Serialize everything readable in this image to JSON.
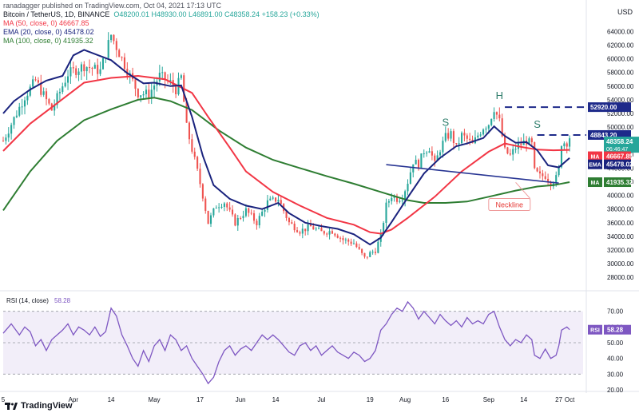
{
  "header": {
    "publisher_line": "ranadagger published on TradingView.com, Oct 04, 2021 17:13 UTC",
    "symbol": "Bitcoin / TetherUS, 1D, BINANCE",
    "ohlc": "O48200.01  H48930.00  L46891.00  C48358.24  +158.23 (+0.33%)",
    "ma50": "MA (50, close, 0)   46667.85",
    "ema20": "EMA (20, close, 0)   45478.02",
    "ma100": "MA (100, close, 0)   41935.32",
    "currency": "USD"
  },
  "footer": {
    "brand": "TradingView"
  },
  "colors": {
    "up": "#26a69a",
    "down": "#ef5350",
    "ma50": "#f23645",
    "ema20": "#1a237e",
    "ma100": "#2e7d32",
    "neckline": "#283593",
    "resistance": "#1e2a8a",
    "annotation_text": "#2e7d6b",
    "neckline_label": "#e53935",
    "rsi": "#7e57c2",
    "rsi_band": "rgba(126,87,194,0.10)"
  },
  "chart_data": [
    {
      "type": "candlestick",
      "title": "Bitcoin / TetherUS, 1D, BINANCE",
      "ylim": [
        26500,
        66500
      ],
      "y_ticks": [
        28000,
        30000,
        32000,
        34000,
        36000,
        38000,
        40000,
        42000,
        44000,
        46000,
        48000,
        50000,
        52000,
        54000,
        56000,
        58000,
        60000,
        62000,
        64000
      ],
      "x_ticks": [
        {
          "label": "5",
          "day": 0
        },
        {
          "label": "Apr",
          "day": 26
        },
        {
          "label": "14",
          "day": 40
        },
        {
          "label": "May",
          "day": 56
        },
        {
          "label": "17",
          "day": 73
        },
        {
          "label": "Jun",
          "day": 88
        },
        {
          "label": "14",
          "day": 101
        },
        {
          "label": "Jul",
          "day": 118
        },
        {
          "label": "19",
          "day": 136
        },
        {
          "label": "Aug",
          "day": 149
        },
        {
          "label": "16",
          "day": 164
        },
        {
          "label": "Sep",
          "day": 180
        },
        {
          "label": "14",
          "day": 193
        },
        {
          "label": "27",
          "day": 206
        },
        {
          "label": "Oct",
          "day": 210
        }
      ],
      "close_anchors": [
        [
          0,
          48000
        ],
        [
          8,
          54500
        ],
        [
          12,
          56800
        ],
        [
          18,
          52500
        ],
        [
          24,
          57800
        ],
        [
          30,
          59000
        ],
        [
          36,
          58200
        ],
        [
          40,
          63500
        ],
        [
          44,
          60000
        ],
        [
          50,
          55000
        ],
        [
          54,
          54800
        ],
        [
          58,
          57500
        ],
        [
          62,
          56500
        ],
        [
          64,
          55500
        ],
        [
          66,
          57300
        ],
        [
          68,
          50000
        ],
        [
          72,
          43500
        ],
        [
          74,
          40000
        ],
        [
          76,
          36000
        ],
        [
          79,
          38500
        ],
        [
          82,
          39000
        ],
        [
          86,
          36000
        ],
        [
          90,
          37800
        ],
        [
          94,
          36000
        ],
        [
          98,
          39000
        ],
        [
          102,
          39500
        ],
        [
          106,
          36000
        ],
        [
          110,
          34800
        ],
        [
          114,
          35400
        ],
        [
          118,
          34600
        ],
        [
          122,
          34800
        ],
        [
          126,
          33500
        ],
        [
          130,
          33000
        ],
        [
          134,
          30800
        ],
        [
          136,
          31500
        ],
        [
          138,
          32000
        ],
        [
          140,
          34000
        ],
        [
          142,
          38500
        ],
        [
          144,
          40000
        ],
        [
          146,
          39500
        ],
        [
          148,
          39800
        ],
        [
          150,
          42000
        ],
        [
          152,
          45000
        ],
        [
          154,
          44500
        ],
        [
          156,
          46500
        ],
        [
          158,
          47000
        ],
        [
          160,
          44500
        ],
        [
          162,
          46800
        ],
        [
          164,
          48500
        ],
        [
          166,
          49000
        ],
        [
          168,
          47000
        ],
        [
          170,
          48800
        ],
        [
          172,
          48200
        ],
        [
          174,
          47400
        ],
        [
          176,
          48800
        ],
        [
          178,
          50000
        ],
        [
          180,
          50500
        ],
        [
          182,
          52800
        ],
        [
          184,
          50800
        ],
        [
          186,
          46500
        ],
        [
          188,
          45800
        ],
        [
          190,
          47000
        ],
        [
          192,
          47500
        ],
        [
          194,
          48000
        ],
        [
          196,
          47400
        ],
        [
          197,
          43500
        ],
        [
          199,
          42800
        ],
        [
          201,
          42900
        ],
        [
          203,
          41900
        ],
        [
          205,
          42500
        ],
        [
          206,
          43800
        ],
        [
          207,
          47700
        ],
        [
          209,
          47800
        ],
        [
          210,
          48358
        ]
      ],
      "ma50": [
        [
          0,
          46500
        ],
        [
          10,
          50500
        ],
        [
          20,
          53500
        ],
        [
          30,
          56500
        ],
        [
          40,
          57200
        ],
        [
          50,
          57500
        ],
        [
          60,
          57000
        ],
        [
          70,
          55000
        ],
        [
          76,
          51500
        ],
        [
          84,
          47000
        ],
        [
          90,
          43500
        ],
        [
          100,
          40500
        ],
        [
          110,
          38500
        ],
        [
          120,
          36700
        ],
        [
          130,
          35700
        ],
        [
          136,
          34600
        ],
        [
          140,
          34400
        ],
        [
          144,
          35000
        ],
        [
          150,
          36700
        ],
        [
          160,
          39800
        ],
        [
          170,
          43500
        ],
        [
          180,
          46400
        ],
        [
          186,
          47600
        ],
        [
          192,
          47100
        ],
        [
          198,
          46700
        ],
        [
          204,
          46600
        ],
        [
          210,
          46668
        ]
      ],
      "ema20": [
        [
          0,
          52000
        ],
        [
          4,
          53800
        ],
        [
          10,
          55500
        ],
        [
          16,
          56800
        ],
        [
          22,
          57500
        ],
        [
          26,
          60500
        ],
        [
          30,
          61300
        ],
        [
          36,
          60400
        ],
        [
          40,
          59800
        ],
        [
          46,
          57900
        ],
        [
          52,
          56400
        ],
        [
          56,
          56500
        ],
        [
          62,
          56000
        ],
        [
          66,
          56100
        ],
        [
          70,
          51500
        ],
        [
          74,
          45800
        ],
        [
          78,
          41500
        ],
        [
          84,
          39500
        ],
        [
          90,
          38500
        ],
        [
          96,
          38000
        ],
        [
          102,
          38900
        ],
        [
          106,
          37400
        ],
        [
          112,
          36000
        ],
        [
          118,
          35500
        ],
        [
          124,
          35100
        ],
        [
          130,
          34300
        ],
        [
          136,
          32800
        ],
        [
          140,
          33800
        ],
        [
          144,
          36100
        ],
        [
          150,
          39700
        ],
        [
          156,
          43200
        ],
        [
          162,
          45500
        ],
        [
          168,
          47200
        ],
        [
          172,
          47600
        ],
        [
          178,
          48400
        ],
        [
          182,
          50100
        ],
        [
          186,
          48700
        ],
        [
          190,
          47700
        ],
        [
          194,
          47800
        ],
        [
          198,
          46600
        ],
        [
          202,
          44400
        ],
        [
          206,
          44100
        ],
        [
          210,
          45478
        ]
      ],
      "ma100": [
        [
          0,
          37800
        ],
        [
          10,
          43500
        ],
        [
          20,
          48000
        ],
        [
          30,
          51000
        ],
        [
          40,
          52600
        ],
        [
          50,
          54000
        ],
        [
          56,
          54300
        ],
        [
          62,
          53800
        ],
        [
          70,
          52500
        ],
        [
          80,
          49500
        ],
        [
          90,
          47000
        ],
        [
          100,
          45200
        ],
        [
          110,
          44000
        ],
        [
          120,
          42800
        ],
        [
          130,
          41700
        ],
        [
          140,
          40500
        ],
        [
          150,
          39300
        ],
        [
          156,
          38900
        ],
        [
          164,
          38900
        ],
        [
          172,
          39100
        ],
        [
          180,
          39800
        ],
        [
          190,
          40700
        ],
        [
          198,
          41300
        ],
        [
          204,
          41500
        ],
        [
          210,
          41935
        ]
      ],
      "annotations": [
        {
          "text": "S",
          "kind": "pattern"
        },
        {
          "text": "H",
          "kind": "pattern"
        },
        {
          "text": "S",
          "kind": "pattern"
        },
        {
          "text": "Neckline",
          "kind": "label"
        }
      ],
      "resistance_levels": [
        52920,
        48843.2
      ],
      "neckline": [
        [
          142,
          44500
        ],
        [
          206,
          41800
        ]
      ],
      "price_labels": [
        {
          "text": "52920.00",
          "value": 52920,
          "style": "resistance"
        },
        {
          "text": "48843.20",
          "value": 48843.2,
          "style": "resistance"
        },
        {
          "text": "48358.24",
          "sub": "06:46:47",
          "value": 48358.24,
          "style": "last"
        },
        {
          "text": "46667.85",
          "tag": "MA",
          "value": 46667.85,
          "style": "ma50"
        },
        {
          "text": "45478.02",
          "tag": "EMA",
          "value": 45478.02,
          "style": "ema20"
        },
        {
          "text": "41935.32",
          "tag": "MA",
          "value": 41935.32,
          "style": "ma100"
        }
      ]
    },
    {
      "type": "line",
      "title": "RSI (14, close)",
      "value_label": "58.28",
      "tag": "RSI",
      "ylim": [
        20,
        80
      ],
      "y_ticks": [
        30,
        40,
        50,
        60,
        70
      ],
      "band": [
        30,
        70
      ],
      "series": [
        {
          "name": "RSI",
          "points": [
            [
              0,
              56
            ],
            [
              3,
              62
            ],
            [
              6,
              55
            ],
            [
              8,
              60
            ],
            [
              10,
              57
            ],
            [
              12,
              48
            ],
            [
              14,
              52
            ],
            [
              16,
              45
            ],
            [
              18,
              52
            ],
            [
              20,
              55
            ],
            [
              22,
              58
            ],
            [
              24,
              62
            ],
            [
              26,
              55
            ],
            [
              28,
              60
            ],
            [
              30,
              58
            ],
            [
              32,
              55
            ],
            [
              34,
              60
            ],
            [
              36,
              54
            ],
            [
              38,
              57
            ],
            [
              40,
              72
            ],
            [
              42,
              67
            ],
            [
              44,
              55
            ],
            [
              46,
              48
            ],
            [
              48,
              40
            ],
            [
              50,
              35
            ],
            [
              52,
              45
            ],
            [
              54,
              38
            ],
            [
              56,
              48
            ],
            [
              58,
              52
            ],
            [
              60,
              45
            ],
            [
              62,
              55
            ],
            [
              64,
              52
            ],
            [
              66,
              45
            ],
            [
              68,
              48
            ],
            [
              70,
              40
            ],
            [
              72,
              35
            ],
            [
              74,
              30
            ],
            [
              76,
              24
            ],
            [
              78,
              28
            ],
            [
              80,
              38
            ],
            [
              82,
              45
            ],
            [
              84,
              48
            ],
            [
              86,
              42
            ],
            [
              88,
              46
            ],
            [
              90,
              48
            ],
            [
              92,
              45
            ],
            [
              94,
              50
            ],
            [
              96,
              55
            ],
            [
              98,
              52
            ],
            [
              100,
              55
            ],
            [
              102,
              52
            ],
            [
              104,
              48
            ],
            [
              106,
              44
            ],
            [
              108,
              42
            ],
            [
              110,
              48
            ],
            [
              112,
              50
            ],
            [
              114,
              45
            ],
            [
              116,
              48
            ],
            [
              118,
              42
            ],
            [
              120,
              45
            ],
            [
              122,
              48
            ],
            [
              124,
              44
            ],
            [
              126,
              42
            ],
            [
              128,
              40
            ],
            [
              130,
              44
            ],
            [
              132,
              42
            ],
            [
              134,
              38
            ],
            [
              136,
              40
            ],
            [
              138,
              45
            ],
            [
              140,
              58
            ],
            [
              142,
              62
            ],
            [
              144,
              68
            ],
            [
              146,
              72
            ],
            [
              148,
              70
            ],
            [
              150,
              76
            ],
            [
              152,
              72
            ],
            [
              154,
              65
            ],
            [
              156,
              70
            ],
            [
              158,
              66
            ],
            [
              160,
              62
            ],
            [
              162,
              68
            ],
            [
              164,
              64
            ],
            [
              166,
              61
            ],
            [
              168,
              64
            ],
            [
              170,
              60
            ],
            [
              172,
              66
            ],
            [
              174,
              62
            ],
            [
              176,
              64
            ],
            [
              178,
              62
            ],
            [
              180,
              68
            ],
            [
              182,
              70
            ],
            [
              184,
              60
            ],
            [
              186,
              52
            ],
            [
              188,
              48
            ],
            [
              190,
              52
            ],
            [
              192,
              50
            ],
            [
              194,
              55
            ],
            [
              196,
              52
            ],
            [
              197,
              42
            ],
            [
              199,
              40
            ],
            [
              201,
              46
            ],
            [
              203,
              40
            ],
            [
              205,
              42
            ],
            [
              206,
              48
            ],
            [
              207,
              58
            ],
            [
              209,
              60
            ],
            [
              210,
              58.28
            ]
          ]
        }
      ]
    }
  ]
}
